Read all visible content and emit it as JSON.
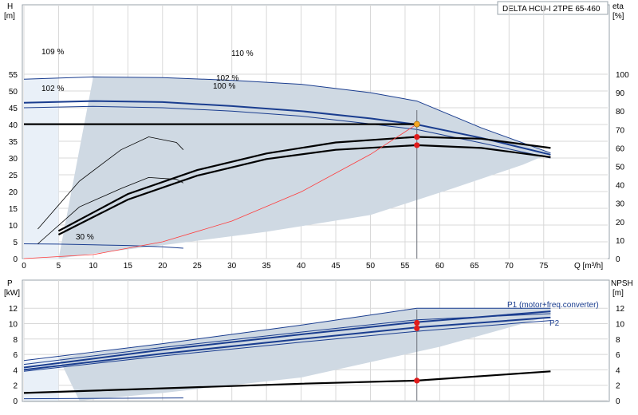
{
  "title": "DELTA HCU-I 2TPE 65-460",
  "top": {
    "left_axis_label": "H",
    "left_axis_unit": "[m]",
    "right_axis_label": "eta",
    "right_axis_unit": "[%]",
    "x_axis_label": "Q [m³/h]",
    "annotations": [
      "109 %",
      "110 %",
      "102 %",
      "100 %",
      "102 %",
      "30 %"
    ]
  },
  "bottom": {
    "left_axis_label": "P",
    "left_axis_unit": "[kW]",
    "right_axis_label": "NPSH",
    "right_axis_unit": "[m]",
    "series_labels": [
      "P1 (motor+freq.converter)",
      "P2"
    ]
  },
  "colors": {
    "envelope_fill": "#cfd9e3",
    "curve_blue": "#1a3d8f",
    "curve_black": "#000000",
    "system_curve": "#ff3b3b",
    "duty_point": "#e01b1b",
    "highlight_point": "#f5a623",
    "grid": "#d8d8d8"
  },
  "chart_data": [
    {
      "type": "line",
      "name": "head-efficiency",
      "x": {
        "label": "Q [m³/h]",
        "range": [
          0,
          80
        ],
        "ticks": [
          0,
          5,
          10,
          15,
          20,
          25,
          30,
          35,
          40,
          45,
          50,
          55,
          60,
          65,
          70,
          75
        ]
      },
      "y_left": {
        "label": "H [m]",
        "range": [
          0,
          60
        ],
        "ticks": [
          0,
          5,
          10,
          15,
          20,
          25,
          30,
          35,
          40,
          45,
          50,
          55
        ]
      },
      "y_right": {
        "label": "eta [%]",
        "range": [
          0,
          120
        ],
        "ticks": [
          0,
          10,
          20,
          30,
          40,
          50,
          60,
          70,
          80,
          90,
          100
        ]
      },
      "series": [
        {
          "name": "110 %",
          "axis": "left",
          "style": "blue",
          "points": [
            [
              0,
              53.5
            ],
            [
              10,
              54.2
            ],
            [
              20,
              54
            ],
            [
              30,
              53.2
            ],
            [
              40,
              52
            ],
            [
              50,
              49.5
            ],
            [
              56.7,
              47
            ],
            [
              66,
              39
            ],
            [
              76,
              31.5
            ]
          ]
        },
        {
          "name": "102 %",
          "axis": "left",
          "style": "blue-bold",
          "points": [
            [
              0,
              46.5
            ],
            [
              10,
              47
            ],
            [
              20,
              46.7
            ],
            [
              30,
              45.5
            ],
            [
              40,
              44
            ],
            [
              50,
              41.8
            ],
            [
              56.7,
              40
            ],
            [
              66,
              36
            ],
            [
              76,
              31
            ]
          ]
        },
        {
          "name": "100 %",
          "axis": "left",
          "style": "blue",
          "points": [
            [
              0,
              45
            ],
            [
              10,
              45.4
            ],
            [
              20,
              45
            ],
            [
              30,
              44
            ],
            [
              40,
              42.5
            ],
            [
              50,
              40.2
            ],
            [
              56.7,
              38.5
            ],
            [
              66,
              34.5
            ],
            [
              76,
              30
            ]
          ]
        },
        {
          "name": "30 %",
          "axis": "left",
          "style": "blue",
          "points": [
            [
              0,
              4.4
            ],
            [
              5,
              4.3
            ],
            [
              10,
              4.1
            ],
            [
              15,
              3.9
            ],
            [
              20,
              3.5
            ],
            [
              23,
              3.1
            ]
          ]
        },
        {
          "name": "duty-100",
          "axis": "left",
          "style": "black-bold",
          "points": [
            [
              0,
              40.1
            ],
            [
              56.7,
              40.1
            ]
          ]
        },
        {
          "name": "eta-high",
          "axis": "right",
          "style": "black-bold",
          "points": [
            [
              5,
              15
            ],
            [
              15,
              35
            ],
            [
              25,
              48
            ],
            [
              35,
              57
            ],
            [
              45,
              63
            ],
            [
              56.7,
              66
            ],
            [
              66,
              65
            ],
            [
              76,
              60
            ]
          ]
        },
        {
          "name": "eta-mid",
          "axis": "right",
          "style": "black-bold",
          "points": [
            [
              5,
              13
            ],
            [
              15,
              32
            ],
            [
              25,
              45
            ],
            [
              35,
              54
            ],
            [
              45,
              59
            ],
            [
              56.7,
              61.5
            ],
            [
              66,
              60
            ],
            [
              76,
              55
            ]
          ]
        },
        {
          "name": "eta-low",
          "axis": "right",
          "style": "black",
          "points": [
            [
              2,
              16
            ],
            [
              8,
              42
            ],
            [
              14,
              59
            ],
            [
              18,
              66
            ],
            [
              22,
              63
            ],
            [
              23,
              59
            ]
          ]
        },
        {
          "name": "eta-low-2",
          "axis": "right",
          "style": "black",
          "points": [
            [
              2,
              8
            ],
            [
              8,
              28
            ],
            [
              14,
              38
            ],
            [
              18,
              44
            ],
            [
              22,
              43
            ],
            [
              23,
              41
            ]
          ]
        },
        {
          "name": "system",
          "axis": "left",
          "style": "red",
          "points": [
            [
              0,
              0
            ],
            [
              10,
              1.2
            ],
            [
              20,
              5
            ],
            [
              30,
              11.2
            ],
            [
              40,
              19.9
            ],
            [
              50,
              31.1
            ],
            [
              56.7,
              40.1
            ]
          ]
        }
      ],
      "points": [
        {
          "x": 56.7,
          "y": 40.1,
          "axis": "left",
          "color": "highlight"
        },
        {
          "x": 56.7,
          "y": 66,
          "axis": "right",
          "color": "duty"
        },
        {
          "x": 56.7,
          "y": 61.5,
          "axis": "right",
          "color": "duty"
        }
      ]
    },
    {
      "type": "line",
      "name": "power-npsh",
      "x": {
        "range": [
          0,
          80
        ],
        "ticks": [
          0,
          5,
          10,
          15,
          20,
          25,
          30,
          35,
          40,
          45,
          50,
          55,
          60,
          65,
          70,
          75
        ]
      },
      "y_left": {
        "label": "P [kW]",
        "range": [
          0,
          14
        ],
        "ticks": [
          0,
          2,
          4,
          6,
          8,
          10,
          12
        ]
      },
      "y_right": {
        "label": "NPSH [m]",
        "range": [
          0,
          14
        ],
        "ticks": [
          0,
          2,
          4,
          6,
          8,
          10,
          12
        ]
      },
      "series": [
        {
          "name": "P1 upper",
          "axis": "left",
          "style": "blue",
          "points": [
            [
              0,
              5.2
            ],
            [
              20,
              7.4
            ],
            [
              40,
              9.8
            ],
            [
              56.7,
              12
            ],
            [
              76,
              12
            ]
          ]
        },
        {
          "name": "P1 (motor+freq.converter)",
          "axis": "left",
          "style": "blue-bold",
          "points": [
            [
              0,
              4.3
            ],
            [
              20,
              6.6
            ],
            [
              40,
              8.6
            ],
            [
              56.7,
              10.2
            ],
            [
              76,
              11.6
            ]
          ]
        },
        {
          "name": "P1 mid",
          "axis": "left",
          "style": "blue",
          "points": [
            [
              0,
              4.7
            ],
            [
              20,
              6.9
            ],
            [
              40,
              8.9
            ],
            [
              56.7,
              10.5
            ],
            [
              76,
              11.3
            ]
          ]
        },
        {
          "name": "P2",
          "axis": "left",
          "style": "blue-bold",
          "points": [
            [
              0,
              4.0
            ],
            [
              20,
              6.1
            ],
            [
              40,
              8.0
            ],
            [
              56.7,
              9.5
            ],
            [
              76,
              10.8
            ]
          ]
        },
        {
          "name": "P2 lower",
          "axis": "left",
          "style": "blue",
          "points": [
            [
              0,
              3.8
            ],
            [
              20,
              5.8
            ],
            [
              40,
              7.6
            ],
            [
              56.7,
              9.0
            ],
            [
              76,
              10.4
            ]
          ]
        },
        {
          "name": "P 30 %",
          "axis": "left",
          "style": "blue",
          "points": [
            [
              0,
              0.25
            ],
            [
              23,
              0.35
            ]
          ]
        },
        {
          "name": "NPSH",
          "axis": "right",
          "style": "black-bold",
          "points": [
            [
              0,
              1.0
            ],
            [
              20,
              1.6
            ],
            [
              40,
              2.2
            ],
            [
              56.7,
              2.6
            ],
            [
              76,
              3.8
            ]
          ]
        }
      ],
      "points": [
        {
          "x": 56.7,
          "y": 10.1,
          "axis": "left",
          "color": "duty"
        },
        {
          "x": 56.7,
          "y": 9.4,
          "axis": "left",
          "color": "duty"
        },
        {
          "x": 56.7,
          "y": 2.6,
          "axis": "right",
          "color": "duty"
        }
      ]
    }
  ]
}
